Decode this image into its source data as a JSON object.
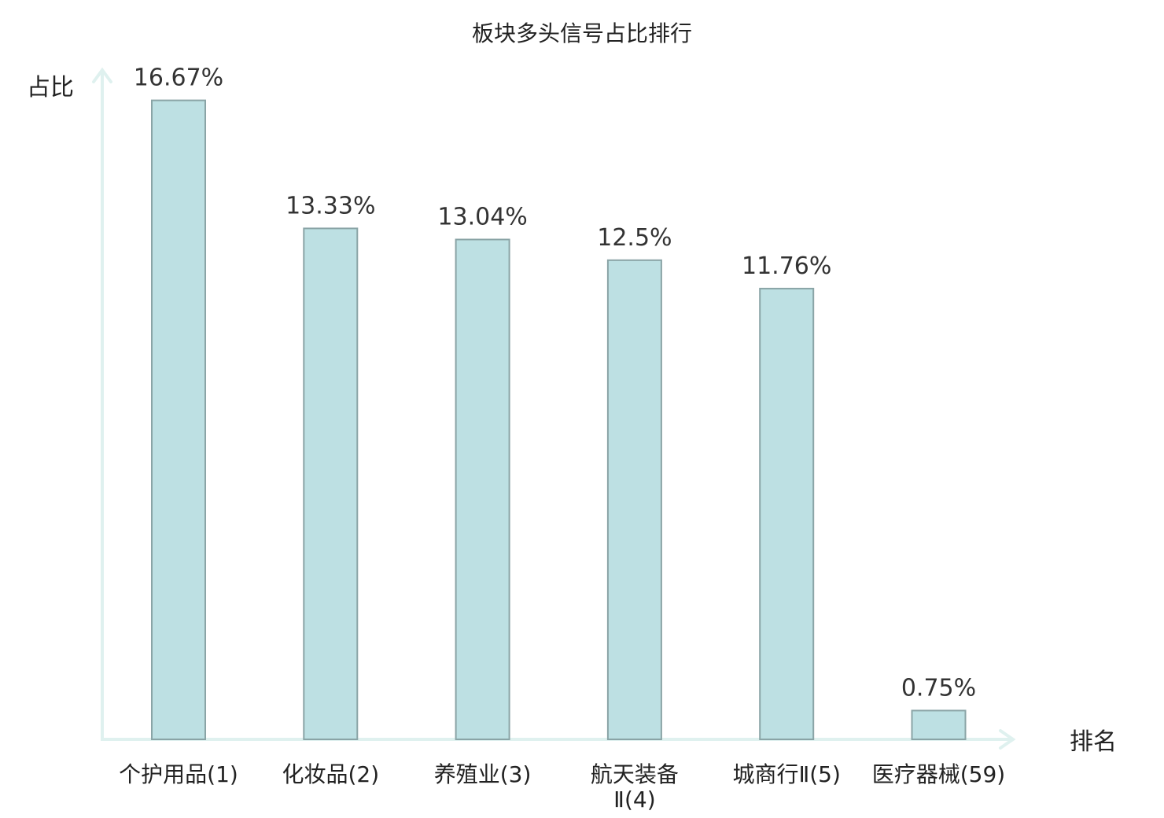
{
  "chart_data": {
    "type": "bar",
    "title": "板块多头信号占比排行",
    "ylabel": "占比",
    "xlabel": "排名",
    "ylim": [
      0,
      17.4
    ],
    "grid": false,
    "legend": "none",
    "categories": [
      [
        "个护用品(1)"
      ],
      [
        "化妆品(2)"
      ],
      [
        "养殖业(3)"
      ],
      [
        "航天装备",
        "Ⅱ(4)"
      ],
      [
        "城商行Ⅱ(5)"
      ],
      [
        "医疗器械(59)"
      ]
    ],
    "values": [
      16.67,
      13.33,
      13.04,
      12.5,
      11.76,
      0.75
    ],
    "value_labels": [
      "16.67%",
      "13.33%",
      "13.04%",
      "12.5%",
      "11.76%",
      "0.75%"
    ],
    "highlight_index": 5,
    "colors": {
      "bar_fill": "#bde0e3",
      "bar_stroke": "#8aa4a6",
      "axis": "#dff1ef",
      "highlight_text": "#e0201b",
      "text": "#222222"
    }
  }
}
